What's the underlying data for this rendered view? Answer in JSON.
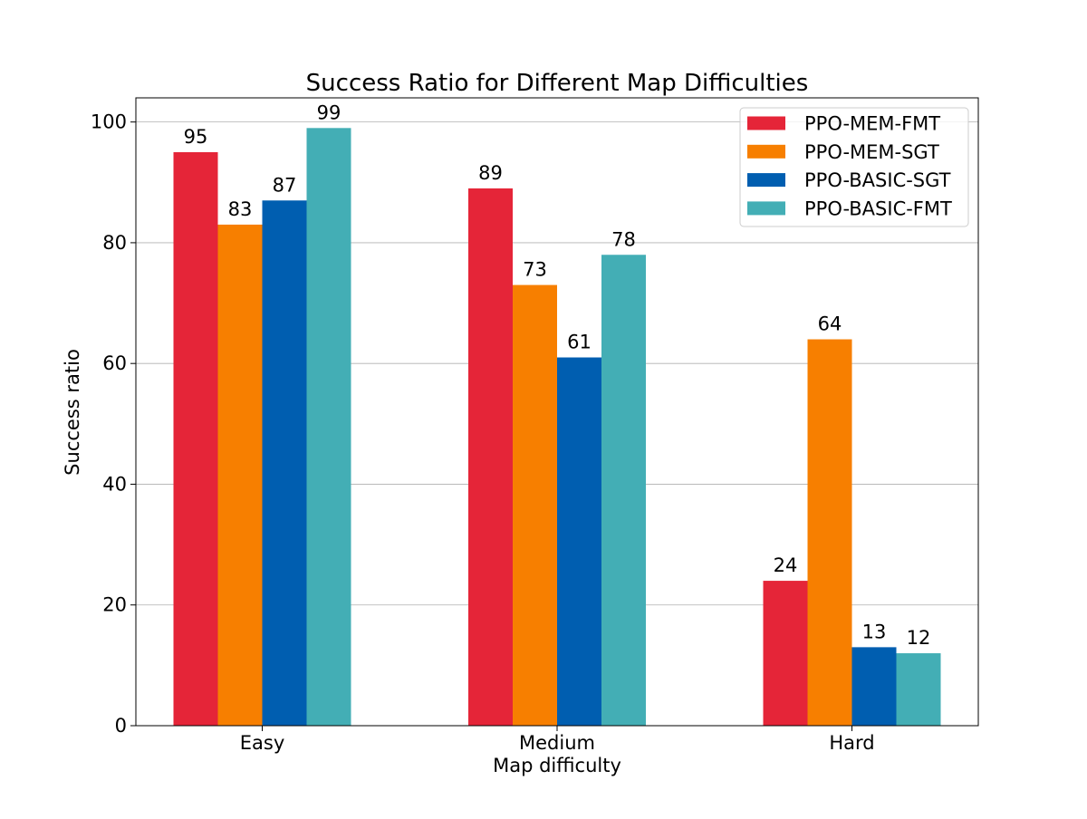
{
  "chart_data": {
    "type": "bar",
    "title": "Success Ratio for Different Map Difficulties",
    "xlabel": "Map difficulty",
    "ylabel": "Success ratio",
    "categories": [
      "Easy",
      "Medium",
      "Hard"
    ],
    "ylim": [
      0,
      104
    ],
    "yticks": [
      0,
      20,
      40,
      60,
      80,
      100
    ],
    "grid": "y",
    "legend_position": "top-right",
    "data_labels": true,
    "series": [
      {
        "name": "PPO-MEM-FMT",
        "color": "#e52538",
        "values": [
          95,
          89,
          24
        ]
      },
      {
        "name": "PPO-MEM-SGT",
        "color": "#f77f00",
        "values": [
          83,
          73,
          64
        ]
      },
      {
        "name": "PPO-BASIC-SGT",
        "color": "#005eb0",
        "values": [
          87,
          61,
          13
        ]
      },
      {
        "name": "PPO-BASIC-FMT",
        "color": "#43aeb5",
        "values": [
          99,
          78,
          12
        ]
      }
    ]
  }
}
